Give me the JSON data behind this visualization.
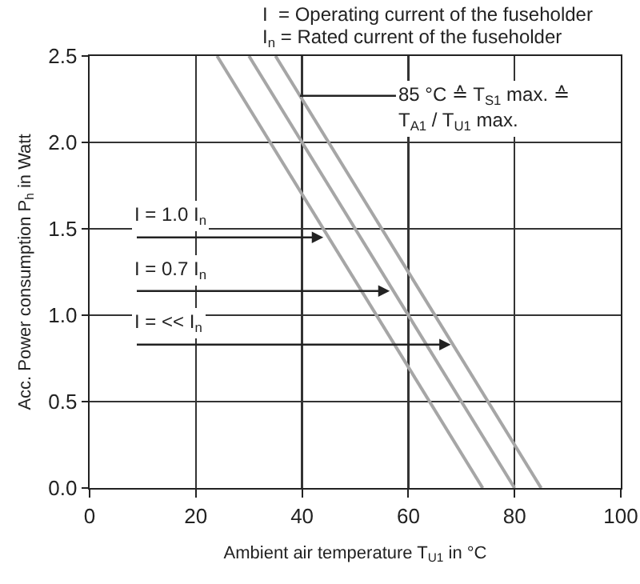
{
  "chart_data": {
    "type": "line",
    "xlabel": "Ambient air temperature T$_{U1}$ in °C",
    "ylabel": "Acc. Power consumption P$_{h}$ in Watt",
    "series": [
      {
        "color": "#a6a6a6",
        "x": [
          24,
          74
        ],
        "values": [
          2.5,
          0
        ]
      },
      {
        "color": "#a6a6a6",
        "x": [
          30,
          80
        ],
        "values": [
          2.5,
          0
        ]
      },
      {
        "color": "#a6a6a6",
        "x": [
          35,
          85
        ],
        "values": [
          2.5,
          0
        ]
      }
    ],
    "xlim": [
      0,
      100
    ],
    "xticks": [
      0,
      20,
      40,
      60,
      80,
      100
    ],
    "ylim": [
      0,
      2.5
    ],
    "yticks": [
      {
        "value": 0,
        "label": "0.0"
      },
      0.5,
      {
        "value": 1,
        "label": "1.0"
      },
      1.5,
      {
        "value": 2,
        "label": "2.0"
      },
      2.5
    ],
    "grid": true,
    "marker": "none",
    "line_style": "solid",
    "annotations": [
      "I  = Operating current of the fuseholder",
      "I$_{n}$ = Rated current of the fuseholder",
      {
        "text": "85 °C ≙ T$_{S1}$ max. ≙",
        "x": 39.6,
        "y": 2.27
      },
      {
        "text": "T$_{A1}$ / T$_{U1}$ max.",
        "x": 39.6,
        "y": 2.27
      },
      {
        "text": "I = 1.0 I$_{n}$",
        "x": 44,
        "y": 1.45
      },
      {
        "text": "I = 0.7 I$_{n}$",
        "x": 56.5,
        "y": 1.14
      },
      {
        "text": "I = << I$_{n}$",
        "x": 68,
        "y": 0.83
      }
    ]
  }
}
